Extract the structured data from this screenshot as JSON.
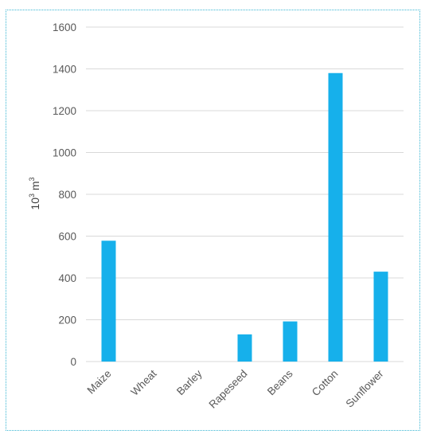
{
  "chart_data": {
    "type": "bar",
    "title": "",
    "xlabel": "",
    "ylabel": {
      "base": "10",
      "base_exp": "3",
      "unit": "m",
      "unit_exp": "3"
    },
    "categories": [
      "Maize",
      "Wheat",
      "Barley",
      "Rapeseed",
      "Beans",
      "Cotton",
      "Sunflower"
    ],
    "values": [
      578,
      0,
      0,
      130,
      192,
      1380,
      430
    ],
    "ylim": [
      0,
      1600
    ],
    "yticks": [
      0,
      200,
      400,
      600,
      800,
      1000,
      1200,
      1400,
      1600
    ],
    "grid": true,
    "legend": "none",
    "bar_color": "#16b0eb",
    "frame_color": "#3ab6d3"
  }
}
